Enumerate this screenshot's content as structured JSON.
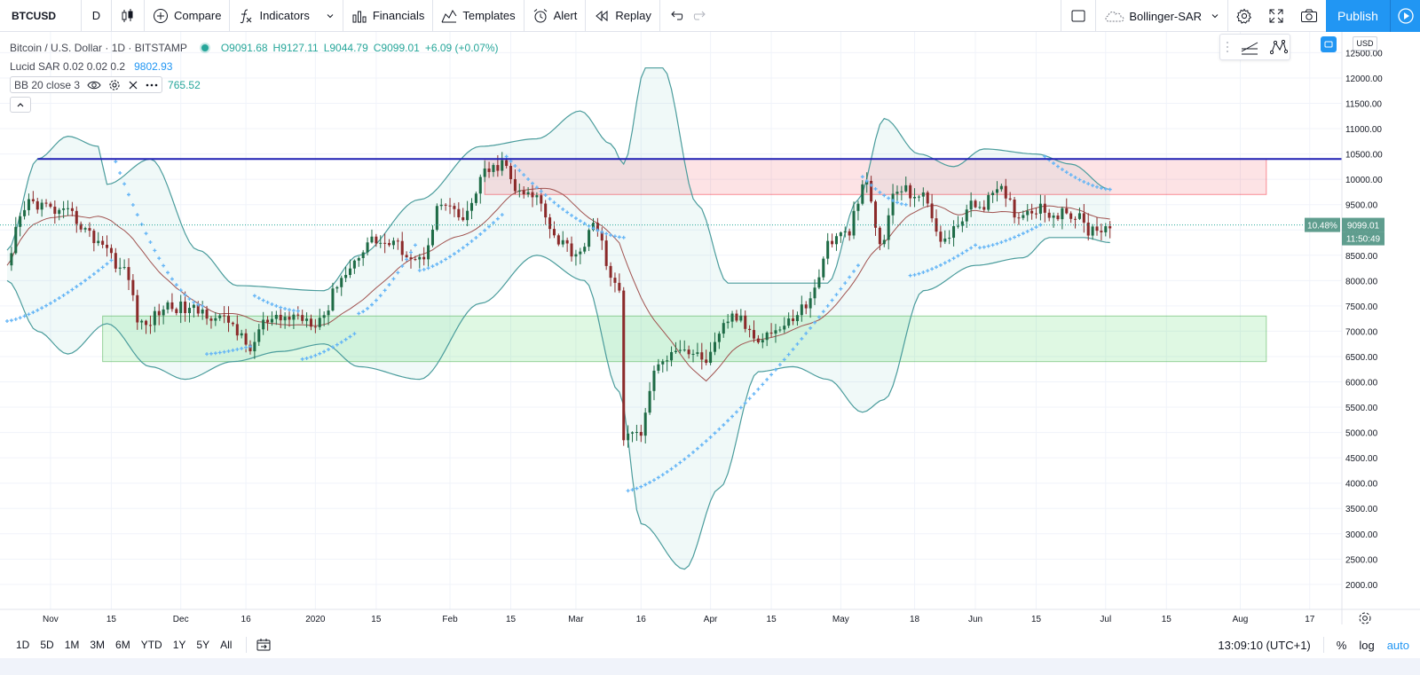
{
  "toolbar": {
    "symbol": "BTCUSD",
    "interval": "D",
    "compare": "Compare",
    "indicators": "Indicators",
    "financials": "Financials",
    "templates": "Templates",
    "alert": "Alert",
    "replay": "Replay",
    "layout_name": "Bollinger-SAR",
    "publish": "Publish"
  },
  "legend": {
    "title": "Bitcoin / U.S. Dollar · 1D · BITSTAMP",
    "open": "O9091.68",
    "high": "H9127.11",
    "low": "L9044.79",
    "close": "C9099.01",
    "change": "+6.09 (+0.07%)",
    "sar_label": "Lucid SAR 0.02 0.02 0.2",
    "sar_value": "9802.93",
    "bb_label": "BB 20 close 3",
    "bb_value": "765.52"
  },
  "price_scale": {
    "currency": "USD",
    "ticks": [
      "12500.00",
      "12000.00",
      "11500.00",
      "11000.00",
      "10500.00",
      "10000.00",
      "9500.00",
      "9000.00",
      "8500.00",
      "8000.00",
      "7500.00",
      "7000.00",
      "6500.00",
      "6000.00",
      "5500.00",
      "5000.00",
      "4500.00",
      "4000.00",
      "3500.00",
      "3000.00",
      "2500.00",
      "2000.00"
    ],
    "last_price": "9099.01",
    "last_pct": "10.48%",
    "countdown": "11:50:49"
  },
  "time_scale": {
    "labels": [
      "Nov",
      "15",
      "Dec",
      "16",
      "2020",
      "15",
      "Feb",
      "15",
      "Mar",
      "16",
      "Apr",
      "15",
      "May",
      "18",
      "Jun",
      "15",
      "Jul",
      "15",
      "Aug",
      "17"
    ]
  },
  "bottom": {
    "ranges": [
      "1D",
      "5D",
      "1M",
      "3M",
      "6M",
      "YTD",
      "1Y",
      "5Y",
      "All"
    ],
    "clock": "13:09:10 (UTC+1)",
    "percent": "%",
    "log": "log",
    "auto": "auto"
  },
  "colors": {
    "up": "#26a69a",
    "down": "#ef5350",
    "candle_up": "#1e6b46",
    "candle_down": "#8b2a2a",
    "bb_band": "#4a9c9c",
    "bb_basis": "#a0524f",
    "sar": "#64b5f6",
    "resistance_line": "#1f1fb4",
    "red_zone": "#f8c7c7",
    "green_zone": "#c8f3c8",
    "accent": "#2196f3"
  },
  "chart_data": {
    "type": "candlestick",
    "title": "Bitcoin / U.S. Dollar · 1D · BITSTAMP",
    "x_range": [
      "2019-10-22",
      "2020-08-24"
    ],
    "ylim": [
      1700,
      12700
    ],
    "resistance_level": 10400,
    "zones": [
      {
        "kind": "resistance",
        "from": "2020-02-09",
        "to": "2020-08-07",
        "low": 9700,
        "high": 10400
      },
      {
        "kind": "support",
        "from": "2019-11-13",
        "to": "2020-08-07",
        "low": 6400,
        "high": 7300
      }
    ],
    "close_anchors": [
      [
        "2019-10-22",
        8200
      ],
      [
        "2019-10-25",
        9200
      ],
      [
        "2019-10-27",
        9550
      ],
      [
        "2019-11-05",
        9300
      ],
      [
        "2019-11-12",
        8800
      ],
      [
        "2019-11-18",
        8200
      ],
      [
        "2019-11-22",
        7100
      ],
      [
        "2019-11-28",
        7500
      ],
      [
        "2019-12-05",
        7400
      ],
      [
        "2019-12-12",
        7200
      ],
      [
        "2019-12-17",
        6650
      ],
      [
        "2019-12-20",
        7150
      ],
      [
        "2019-12-28",
        7300
      ],
      [
        "2020-01-01",
        7200
      ],
      [
        "2020-01-03",
        7350
      ],
      [
        "2020-01-07",
        8100
      ],
      [
        "2020-01-14",
        8800
      ],
      [
        "2020-01-19",
        8700
      ],
      [
        "2020-01-25",
        8400
      ],
      [
        "2020-01-30",
        9500
      ],
      [
        "2020-02-04",
        9200
      ],
      [
        "2020-02-09",
        10100
      ],
      [
        "2020-02-13",
        10300
      ],
      [
        "2020-02-17",
        9700
      ],
      [
        "2020-02-21",
        9650
      ],
      [
        "2020-02-26",
        8800
      ],
      [
        "2020-03-01",
        8550
      ],
      [
        "2020-03-06",
        9100
      ],
      [
        "2020-03-09",
        7950
      ],
      [
        "2020-03-11",
        7900
      ],
      [
        "2020-03-12",
        4900
      ],
      [
        "2020-03-16",
        5000
      ],
      [
        "2020-03-19",
        6200
      ],
      [
        "2020-03-24",
        6700
      ],
      [
        "2020-03-31",
        6450
      ],
      [
        "2020-04-06",
        7300
      ],
      [
        "2020-04-12",
        6900
      ],
      [
        "2020-04-17",
        7050
      ],
      [
        "2020-04-23",
        7500
      ],
      [
        "2020-04-29",
        8800
      ],
      [
        "2020-05-02",
        8900
      ],
      [
        "2020-05-07",
        9900
      ],
      [
        "2020-05-10",
        8700
      ],
      [
        "2020-05-14",
        9800
      ],
      [
        "2020-05-19",
        9700
      ],
      [
        "2020-05-25",
        8800
      ],
      [
        "2020-05-31",
        9450
      ],
      [
        "2020-06-02",
        9500
      ],
      [
        "2020-06-07",
        9750
      ],
      [
        "2020-06-11",
        9300
      ],
      [
        "2020-06-15",
        9450
      ],
      [
        "2020-06-20",
        9300
      ],
      [
        "2020-06-24",
        9300
      ],
      [
        "2020-06-27",
        9000
      ],
      [
        "2020-07-02",
        9100
      ]
    ],
    "sar_segments": [
      {
        "from": "2019-10-22",
        "to": "2019-11-15",
        "start": 7200,
        "end": 8400
      },
      {
        "from": "2019-11-16",
        "to": "2019-12-06",
        "start": 10350,
        "end": 7500
      },
      {
        "from": "2019-12-07",
        "to": "2019-12-17",
        "start": 6550,
        "end": 6700
      },
      {
        "from": "2019-12-18",
        "to": "2019-12-28",
        "start": 7700,
        "end": 7400
      },
      {
        "from": "2019-12-29",
        "to": "2020-01-10",
        "start": 6450,
        "end": 6950
      },
      {
        "from": "2020-01-11",
        "to": "2020-01-24",
        "start": 7350,
        "end": 8700
      },
      {
        "from": "2020-01-25",
        "to": "2020-02-13",
        "start": 8200,
        "end": 9300
      },
      {
        "from": "2020-02-14",
        "to": "2020-03-12",
        "start": 10450,
        "end": 8850
      },
      {
        "from": "2020-03-13",
        "to": "2020-05-05",
        "start": 3850,
        "end": 8300
      },
      {
        "from": "2020-05-06",
        "to": "2020-05-16",
        "start": 10050,
        "end": 9500
      },
      {
        "from": "2020-05-17",
        "to": "2020-06-01",
        "start": 8100,
        "end": 8700
      },
      {
        "from": "2020-06-02",
        "to": "2020-06-16",
        "start": 8650,
        "end": 9100
      },
      {
        "from": "2020-06-17",
        "to": "2020-07-02",
        "start": 10450,
        "end": 9800
      }
    ],
    "bb_upper_anchors": [
      [
        "2019-10-22",
        8600
      ],
      [
        "2019-10-29",
        10400
      ],
      [
        "2019-11-05",
        10850
      ],
      [
        "2019-11-12",
        10650
      ],
      [
        "2019-11-14",
        9900
      ],
      [
        "2019-11-24",
        10400
      ],
      [
        "2019-12-05",
        8600
      ],
      [
        "2019-12-14",
        7900
      ],
      [
        "2020-01-03",
        7800
      ],
      [
        "2020-01-11",
        8500
      ],
      [
        "2020-01-25",
        9600
      ],
      [
        "2020-02-08",
        10650
      ],
      [
        "2020-02-21",
        10800
      ],
      [
        "2020-03-02",
        11350
      ],
      [
        "2020-03-09",
        10700
      ],
      [
        "2020-03-12",
        10300
      ],
      [
        "2020-03-17",
        12200
      ],
      [
        "2020-03-21",
        12200
      ],
      [
        "2020-03-29",
        9500
      ],
      [
        "2020-04-05",
        7950
      ],
      [
        "2020-04-28",
        7950
      ],
      [
        "2020-05-05",
        9600
      ],
      [
        "2020-05-11",
        11200
      ],
      [
        "2020-05-19",
        10500
      ],
      [
        "2020-05-27",
        10250
      ],
      [
        "2020-06-03",
        10600
      ],
      [
        "2020-06-15",
        10500
      ],
      [
        "2020-06-23",
        10300
      ],
      [
        "2020-07-02",
        9800
      ]
    ],
    "bb_lower_anchors": [
      [
        "2019-10-22",
        8000
      ],
      [
        "2019-10-29",
        7000
      ],
      [
        "2019-11-05",
        6550
      ],
      [
        "2019-11-14",
        7150
      ],
      [
        "2019-11-24",
        6300
      ],
      [
        "2019-12-02",
        6050
      ],
      [
        "2019-12-13",
        6400
      ],
      [
        "2019-12-24",
        6600
      ],
      [
        "2020-01-03",
        6750
      ],
      [
        "2020-01-11",
        6300
      ],
      [
        "2020-01-25",
        6050
      ],
      [
        "2020-02-08",
        7550
      ],
      [
        "2020-02-21",
        8500
      ],
      [
        "2020-03-03",
        8000
      ],
      [
        "2020-03-11",
        5800
      ],
      [
        "2020-03-16",
        3200
      ],
      [
        "2020-03-26",
        2300
      ],
      [
        "2020-04-03",
        3900
      ],
      [
        "2020-04-12",
        6200
      ],
      [
        "2020-04-20",
        6300
      ],
      [
        "2020-04-28",
        6050
      ],
      [
        "2020-05-06",
        5400
      ],
      [
        "2020-05-11",
        5650
      ],
      [
        "2020-05-20",
        7800
      ],
      [
        "2020-06-01",
        8300
      ],
      [
        "2020-06-12",
        8450
      ],
      [
        "2020-06-18",
        8850
      ],
      [
        "2020-06-26",
        8850
      ],
      [
        "2020-07-02",
        8750
      ]
    ]
  }
}
